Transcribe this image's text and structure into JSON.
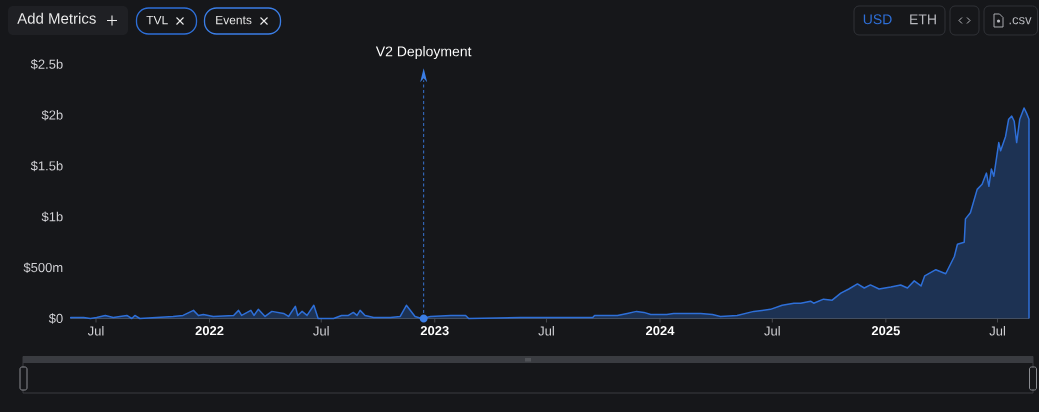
{
  "chart_data": {
    "type": "area",
    "x": [
      "2021-05-21",
      "2021-06-11",
      "2021-06-22",
      "2021-07-02",
      "2021-07-16",
      "2021-07-29",
      "2021-08-20",
      "2021-08-28",
      "2021-09-02",
      "2021-09-10",
      "2021-10-07",
      "2021-11-03",
      "2021-11-19",
      "2021-12-06",
      "2021-12-14",
      "2021-12-22",
      "2022-01-07",
      "2022-02-09",
      "2022-02-17",
      "2022-02-22",
      "2022-03-09",
      "2022-03-14",
      "2022-03-21",
      "2022-04-01",
      "2022-04-12",
      "2022-05-01",
      "2022-05-09",
      "2022-05-20",
      "2022-05-24",
      "2022-05-31",
      "2022-06-08",
      "2022-06-19",
      "2022-06-26",
      "2022-07-21",
      "2022-08-03",
      "2022-08-14",
      "2022-08-22",
      "2022-08-28",
      "2022-09-02",
      "2022-09-10",
      "2022-09-24",
      "2022-10-21",
      "2022-11-06",
      "2022-11-16",
      "2022-11-30",
      "2022-12-11",
      "2022-12-25",
      "2023-01-27",
      "2023-02-20",
      "2023-02-25",
      "2023-05-20",
      "2023-09-14",
      "2023-09-17",
      "2023-10-24",
      "2023-11-09",
      "2023-11-24",
      "2023-12-06",
      "2023-12-17",
      "2024-01-12",
      "2024-01-23",
      "2024-03-07",
      "2024-03-26",
      "2024-04-08",
      "2024-05-05",
      "2024-06-01",
      "2024-06-28",
      "2024-07-17",
      "2024-08-05",
      "2024-08-16",
      "2024-09-01",
      "2024-09-06",
      "2024-09-22",
      "2024-10-06",
      "2024-10-20",
      "2024-11-02",
      "2024-11-16",
      "2024-11-27",
      "2024-12-07",
      "2024-12-21",
      "2025-01-09",
      "2025-01-25",
      "2025-02-05",
      "2025-02-16",
      "2025-02-27",
      "2025-03-05",
      "2025-03-23",
      "2025-04-08",
      "2025-04-22",
      "2025-04-27",
      "2025-05-08",
      "2025-05-10",
      "2025-05-18",
      "2025-05-29",
      "2025-06-06",
      "2025-06-13",
      "2025-06-17",
      "2025-06-21",
      "2025-06-25",
      "2025-07-03",
      "2025-07-06",
      "2025-07-14",
      "2025-07-19",
      "2025-07-24",
      "2025-07-28",
      "2025-08-01",
      "2025-08-06",
      "2025-08-13",
      "2025-08-17",
      "2025-08-21"
    ],
    "series": [
      {
        "color": "#2e6fd8",
        "values": [
          10000000,
          10000000,
          0,
          10000000,
          30000000,
          10000000,
          30000000,
          0,
          30000000,
          0,
          10000000,
          20000000,
          30000000,
          80000000,
          30000000,
          40000000,
          20000000,
          30000000,
          80000000,
          30000000,
          80000000,
          30000000,
          90000000,
          20000000,
          70000000,
          50000000,
          20000000,
          120000000,
          30000000,
          70000000,
          30000000,
          130000000,
          0,
          0,
          30000000,
          30000000,
          60000000,
          30000000,
          80000000,
          30000000,
          10000000,
          10000000,
          20000000,
          130000000,
          20000000,
          0,
          20000000,
          30000000,
          30000000,
          0,
          10000000,
          10000000,
          30000000,
          30000000,
          50000000,
          70000000,
          60000000,
          40000000,
          40000000,
          50000000,
          50000000,
          40000000,
          20000000,
          30000000,
          70000000,
          90000000,
          130000000,
          150000000,
          150000000,
          170000000,
          150000000,
          190000000,
          180000000,
          250000000,
          290000000,
          340000000,
          300000000,
          330000000,
          290000000,
          310000000,
          330000000,
          300000000,
          370000000,
          320000000,
          420000000,
          480000000,
          440000000,
          610000000,
          730000000,
          750000000,
          980000000,
          1040000000,
          1270000000,
          1320000000,
          1430000000,
          1300000000,
          1470000000,
          1400000000,
          1730000000,
          1650000000,
          1790000000,
          1960000000,
          1990000000,
          1940000000,
          1730000000,
          1960000000,
          2070000000,
          2020000000,
          1960000000
        ]
      }
    ],
    "xlim": [
      "2021-05-21",
      "2025-08-21"
    ],
    "xticks": [
      {
        "value": "2021-07-01",
        "label": "Jul"
      },
      {
        "value": "2022-01-01",
        "label": "2022"
      },
      {
        "value": "2022-07-01",
        "label": "Jul"
      },
      {
        "value": "2023-01-01",
        "label": "2023"
      },
      {
        "value": "2023-07-01",
        "label": "Jul"
      },
      {
        "value": "2024-01-01",
        "label": "2024"
      },
      {
        "value": "2024-07-01",
        "label": "Jul"
      },
      {
        "value": "2025-01-01",
        "label": "2025"
      },
      {
        "value": "2025-07-01",
        "label": "Jul"
      }
    ],
    "ylim": [
      0,
      2500000000
    ],
    "yticks": [
      {
        "value": 0,
        "label": "$0"
      },
      {
        "value": 500000000,
        "label": "$500m"
      },
      {
        "value": 1000000000,
        "label": "$1b"
      },
      {
        "value": 1500000000,
        "label": "$1.5b"
      },
      {
        "value": 2000000000,
        "label": "$2b"
      },
      {
        "value": 2500000000,
        "label": "$2.5b"
      }
    ],
    "ref_lines": [
      {
        "axis": "x",
        "value": "2022-12-14",
        "label": "V2 Deployment",
        "color": "#3b7ee6",
        "line_style": "dashed"
      }
    ],
    "annotations": [
      "Add Metrics",
      "TVL",
      "Events",
      "USD",
      "ETH",
      ".csv"
    ]
  }
}
